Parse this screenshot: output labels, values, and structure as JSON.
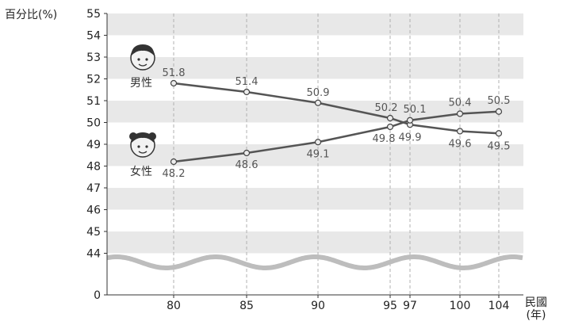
{
  "chart_data": {
    "type": "line",
    "ylabel": "百分比(%)",
    "xlabel": "民國",
    "xunit": "(年)",
    "x": [
      80,
      85,
      90,
      95,
      97,
      100,
      104
    ],
    "x_tick_labels": [
      "80",
      "85",
      "90",
      "95",
      "97",
      "100",
      "104"
    ],
    "y_ticks": [
      "55",
      "54",
      "53",
      "52",
      "51",
      "50",
      "49",
      "48",
      "47",
      "46",
      "45",
      "44",
      "0"
    ],
    "ylim": [
      44,
      55
    ],
    "axis_break": true,
    "series": [
      {
        "name": "男性",
        "values": [
          51.8,
          51.4,
          50.9,
          50.2,
          49.9,
          49.6,
          49.5
        ],
        "labels": [
          "51.8",
          "51.4",
          "50.9",
          "50.2",
          "49.9",
          "49.6",
          "49.5"
        ],
        "color": "#555555",
        "icon": "boy-face-icon"
      },
      {
        "name": "女性",
        "values": [
          48.2,
          48.6,
          49.1,
          49.8,
          50.1,
          50.4,
          50.5
        ],
        "labels": [
          "48.2",
          "48.6",
          "49.1",
          "49.8",
          "50.1",
          "50.4",
          "50.5"
        ],
        "color": "#555555",
        "icon": "girl-face-icon"
      }
    ],
    "colors": {
      "band": "#e8e8e8",
      "wave": "#bdbdbd",
      "grid": "#b0b0b0",
      "marker_fill": "#ececec"
    }
  }
}
